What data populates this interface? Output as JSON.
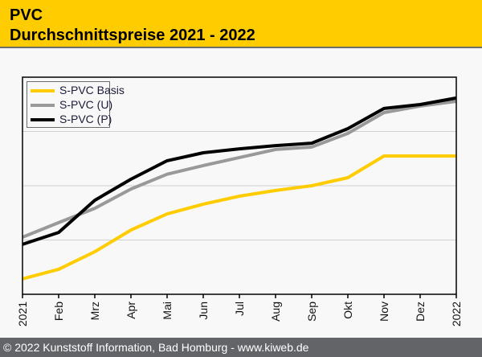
{
  "header": {
    "title_line1": "PVC",
    "title_line2": "Durchschnittspreise 2021 - 2022"
  },
  "footer": {
    "text": "© 2022 Kunststoff Information, Bad Homburg - www.kiweb.de"
  },
  "chart_data": {
    "type": "line",
    "title": "PVC Durchschnittspreise 2021 - 2022",
    "xlabel": "",
    "ylabel": "",
    "y_axis_note": "No y-axis labels shown; values are a normalized index (0 = bottom, 100 = top of plot)",
    "ylim": [
      0,
      100
    ],
    "y_gridlines": [
      25,
      50,
      75
    ],
    "grid": true,
    "legend_position": "top-left",
    "categories": [
      "2021",
      "Feb",
      "Mrz",
      "Apr",
      "Mai",
      "Jun",
      "Jul",
      "Aug",
      "Sep",
      "Okt",
      "Nov",
      "Dez",
      "2022"
    ],
    "series": [
      {
        "name": "S-PVC Basis",
        "color": "#ffcc00",
        "values": [
          7.1,
          11.5,
          19.6,
          29.6,
          37.0,
          41.5,
          45.2,
          47.8,
          50.0,
          53.7,
          63.7,
          63.7,
          63.7
        ]
      },
      {
        "name": "S-PVC (U)",
        "color": "#999999",
        "values": [
          26.3,
          33.0,
          39.6,
          48.5,
          55.3,
          59.3,
          63.0,
          66.7,
          67.8,
          74.1,
          83.7,
          86.7,
          88.9
        ]
      },
      {
        "name": "S-PVC (P)",
        "color": "#000000",
        "values": [
          23.0,
          28.5,
          43.3,
          53.0,
          61.5,
          65.2,
          67.0,
          68.5,
          69.6,
          76.3,
          85.6,
          87.4,
          90.4
        ]
      }
    ]
  }
}
